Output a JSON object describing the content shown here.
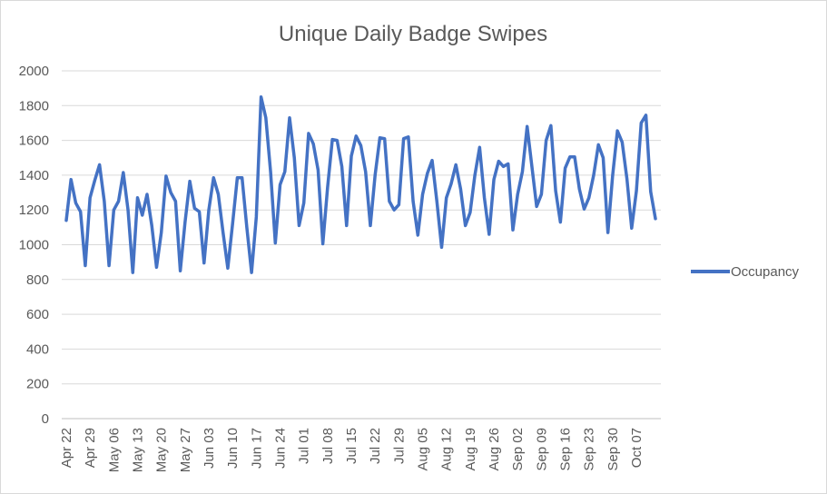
{
  "chart_data": {
    "type": "line",
    "title": "Unique Daily Badge Swipes",
    "xlabel": "",
    "ylabel": "",
    "ylim": [
      0,
      2000
    ],
    "yticks": [
      0,
      200,
      400,
      600,
      800,
      1000,
      1200,
      1400,
      1600,
      1800,
      2000
    ],
    "grid": true,
    "legend_position": "right",
    "line_color": "#4472c4",
    "xticks": [
      {
        "label": "Apr 22",
        "index": 0
      },
      {
        "label": "Apr 29",
        "index": 5
      },
      {
        "label": "May 06",
        "index": 10
      },
      {
        "label": "May 13",
        "index": 15
      },
      {
        "label": "May 20",
        "index": 20
      },
      {
        "label": "May 27",
        "index": 25
      },
      {
        "label": "Jun 03",
        "index": 30
      },
      {
        "label": "Jun 10",
        "index": 35
      },
      {
        "label": "Jun 17",
        "index": 40
      },
      {
        "label": "Jun 24",
        "index": 45
      },
      {
        "label": "Jul 01",
        "index": 50
      },
      {
        "label": "Jul 08",
        "index": 55
      },
      {
        "label": "Jul 15",
        "index": 60
      },
      {
        "label": "Jul 22",
        "index": 65
      },
      {
        "label": "Jul 29",
        "index": 70
      },
      {
        "label": "Aug 05",
        "index": 75
      },
      {
        "label": "Aug 12",
        "index": 80
      },
      {
        "label": "Aug 19",
        "index": 85
      },
      {
        "label": "Aug 26",
        "index": 90
      },
      {
        "label": "Sep 02",
        "index": 95
      },
      {
        "label": "Sep 09",
        "index": 100
      },
      {
        "label": "Sep 16",
        "index": 105
      },
      {
        "label": "Sep 23",
        "index": 110
      },
      {
        "label": "Sep 30",
        "index": 115
      },
      {
        "label": "Oct 07",
        "index": 120
      }
    ],
    "series": [
      {
        "name": "Occupancy",
        "values": [
          1140,
          1375,
          1240,
          1190,
          880,
          1270,
          1370,
          1460,
          1250,
          880,
          1200,
          1250,
          1415,
          1200,
          840,
          1270,
          1170,
          1290,
          1110,
          870,
          1070,
          1395,
          1300,
          1250,
          850,
          1130,
          1365,
          1210,
          1190,
          895,
          1200,
          1385,
          1290,
          1070,
          865,
          1120,
          1385,
          1385,
          1100,
          840,
          1160,
          1850,
          1730,
          1420,
          1010,
          1345,
          1420,
          1730,
          1500,
          1110,
          1240,
          1640,
          1580,
          1430,
          1005,
          1330,
          1605,
          1600,
          1450,
          1110,
          1510,
          1625,
          1570,
          1420,
          1110,
          1400,
          1615,
          1610,
          1250,
          1200,
          1230,
          1610,
          1620,
          1250,
          1055,
          1290,
          1410,
          1485,
          1250,
          985,
          1270,
          1350,
          1460,
          1320,
          1110,
          1185,
          1400,
          1560,
          1270,
          1060,
          1375,
          1480,
          1450,
          1465,
          1085,
          1290,
          1420,
          1680,
          1450,
          1220,
          1290,
          1600,
          1685,
          1310,
          1130,
          1440,
          1505,
          1505,
          1320,
          1205,
          1270,
          1400,
          1575,
          1500,
          1070,
          1400,
          1655,
          1590,
          1380,
          1095,
          1310,
          1700,
          1745,
          1305,
          1150
        ]
      }
    ]
  }
}
